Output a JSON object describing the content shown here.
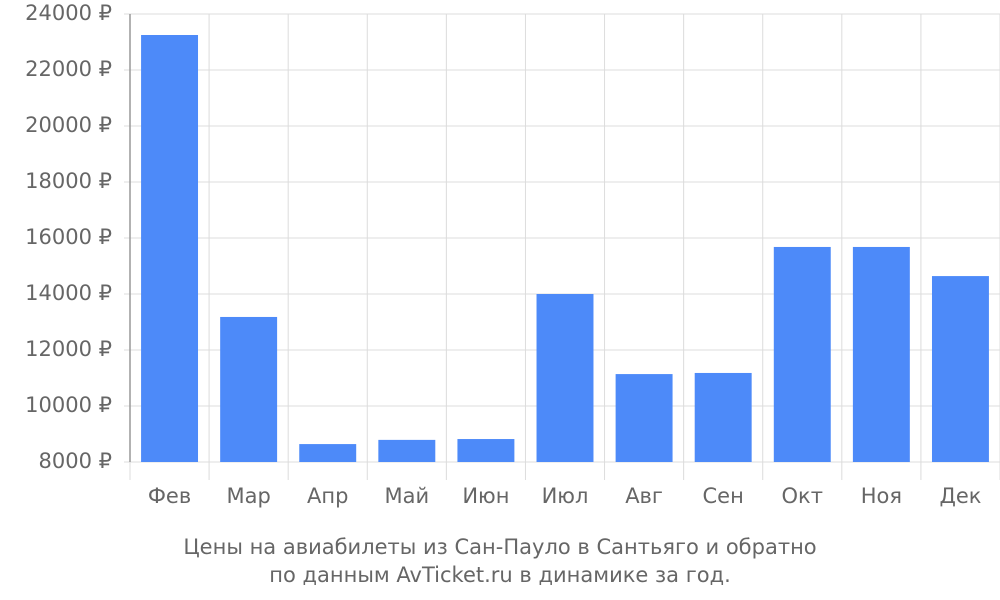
{
  "chart_data": {
    "type": "bar",
    "categories": [
      "Фев",
      "Мар",
      "Апр",
      "Май",
      "Июн",
      "Июл",
      "Авг",
      "Сен",
      "Окт",
      "Ноя",
      "Дек"
    ],
    "values": [
      23250,
      13180,
      8640,
      8790,
      8820,
      14000,
      11140,
      11180,
      15680,
      15680,
      14640
    ],
    "color": "#4d8af9",
    "ylim": [
      8000,
      24000
    ],
    "yticks": [
      {
        "value": 8000,
        "label": "8000 ₽"
      },
      {
        "value": 10000,
        "label": "10000 ₽"
      },
      {
        "value": 12000,
        "label": "12000 ₽"
      },
      {
        "value": 14000,
        "label": "14000 ₽"
      },
      {
        "value": 16000,
        "label": "16000 ₽"
      },
      {
        "value": 18000,
        "label": "18000 ₽"
      },
      {
        "value": 20000,
        "label": "20000 ₽"
      },
      {
        "value": 22000,
        "label": "22000 ₽"
      },
      {
        "value": 24000,
        "label": "24000 ₽"
      }
    ],
    "grid": true,
    "caption": [
      "Цены на авиабилеты из Сан-Пауло в Сантьяго и обратно",
      "по данным AvTicket.ru в динамике за год."
    ]
  }
}
